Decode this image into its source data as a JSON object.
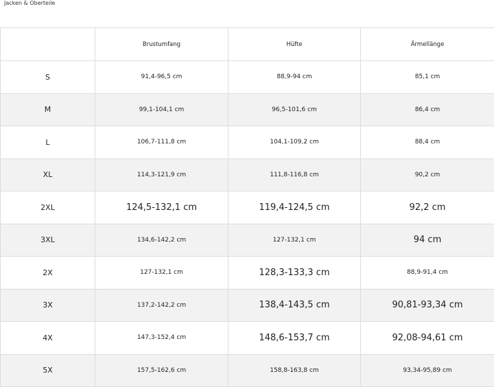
{
  "title": "Jacken & Oberteile",
  "table": {
    "header": [
      "Brustumfang",
      "Hüfte",
      "Ärmellänge"
    ],
    "rows": [
      [
        "S",
        "91,4-96,5 cm",
        "88,9-94 cm",
        "85,1 cm"
      ],
      [
        "M",
        "99,1-104,1 cm",
        "96,5-101,6 cm",
        "86,4 cm"
      ],
      [
        "L",
        "106,7-111,8 cm",
        "104,1-109,2 cm",
        "88,4 cm"
      ],
      [
        "XL",
        "114,3-121,9 cm",
        "111,8-116,8 cm",
        "90,2 cm"
      ],
      [
        "2XL",
        "124,5-132,1 cm",
        "119,4-124,5 cm",
        "92,2 cm"
      ],
      [
        "3XL",
        "134,6-142,2 cm",
        "127-132,1 cm",
        "94 cm"
      ],
      [
        "2X",
        "127-132,1 cm",
        "128,3-133,3 cm",
        "88,9-91,4 cm"
      ],
      [
        "3X",
        "137,2-142,2 cm",
        "138,4-143,5 cm",
        "90,81-93,34 cm"
      ],
      [
        "4X",
        "147,3-152,4 cm",
        "148,6-153,7 cm",
        "92,08-94,61 cm"
      ],
      [
        "5X",
        "157,5-162,6 cm",
        "158,8-163,8 cm",
        "93,34-95,89 cm"
      ]
    ]
  }
}
